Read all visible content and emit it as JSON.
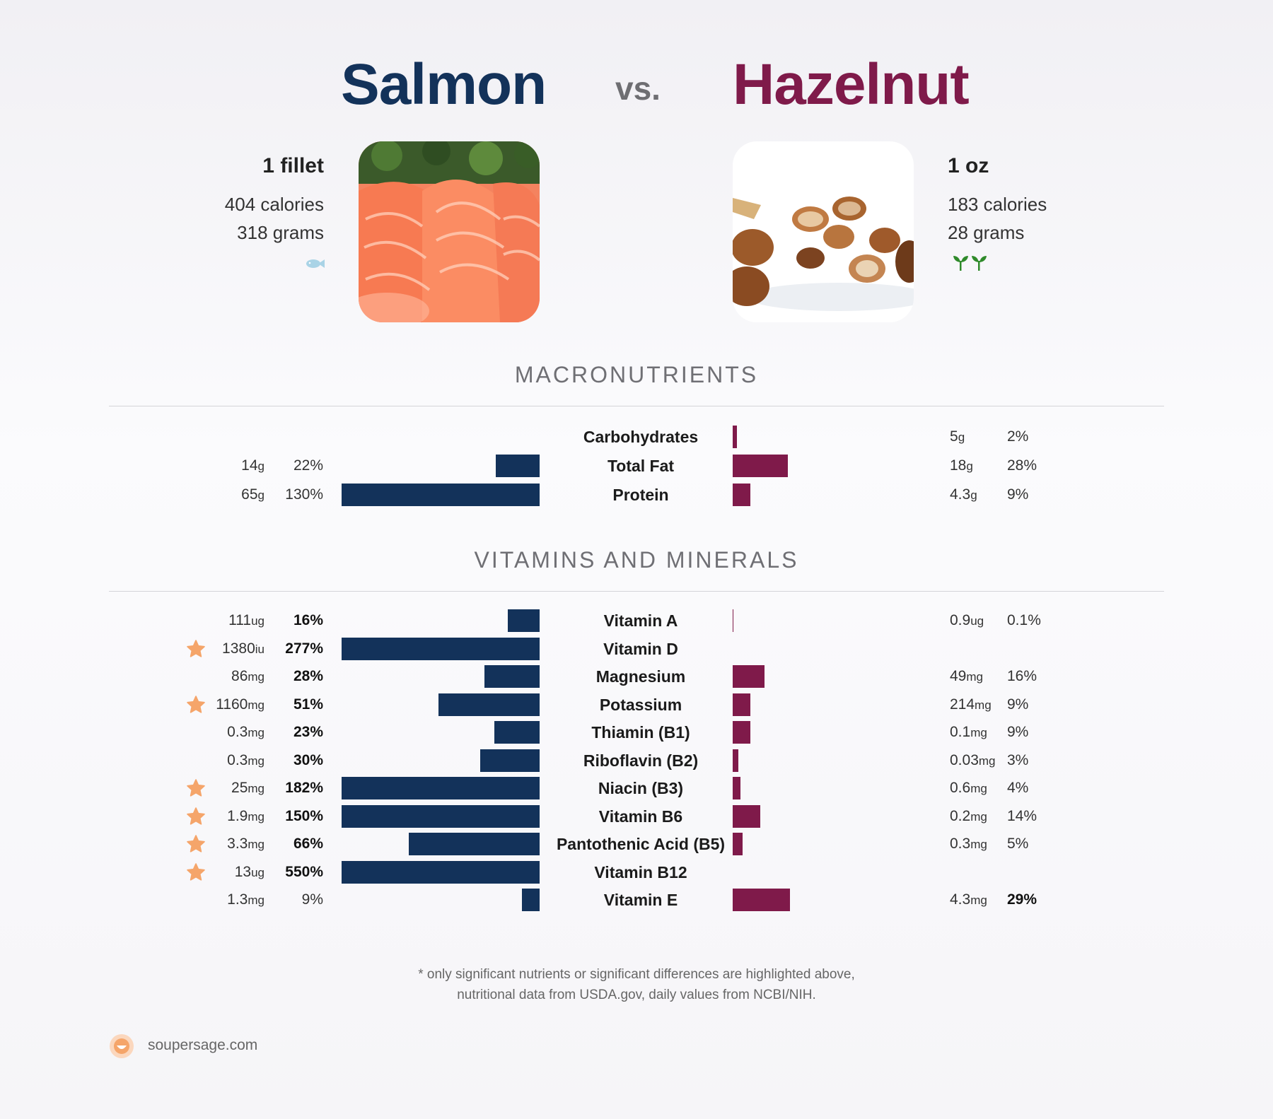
{
  "header": {
    "left_title": "Salmon",
    "vs": "vs.",
    "right_title": "Hazelnut"
  },
  "left_food": {
    "serving": "1 fillet",
    "calories": "404 calories",
    "grams": "318 grams",
    "icon": "fish-icon",
    "color": "#13325a"
  },
  "right_food": {
    "serving": "1 oz",
    "calories": "183 calories",
    "grams": "28 grams",
    "icon": "sprout-icon",
    "color": "#7f1a4a"
  },
  "sections": {
    "macros_title": "MACRONUTRIENTS",
    "vitamins_title": "VITAMINS AND MINERALS"
  },
  "chart_data": [
    {
      "type": "bar",
      "title": "MACRONUTRIENTS",
      "categories": [
        "Carbohydrates",
        "Total Fat",
        "Protein"
      ],
      "series": [
        {
          "name": "Salmon",
          "amounts": [
            "",
            "14",
            "65"
          ],
          "units": [
            "",
            "g",
            "g"
          ],
          "percent_labels": [
            "",
            "22%",
            "130%"
          ],
          "values": [
            null,
            22,
            130
          ],
          "highlight": [
            false,
            false,
            false
          ],
          "star": [
            false,
            false,
            false
          ]
        },
        {
          "name": "Hazelnut",
          "amounts": [
            "5",
            "18",
            "4.3"
          ],
          "units": [
            "g",
            "g",
            "g"
          ],
          "percent_labels": [
            "2%",
            "28%",
            "9%"
          ],
          "values": [
            2,
            28,
            9
          ],
          "highlight": [
            false,
            false,
            false
          ],
          "star": [
            false,
            false,
            false
          ]
        }
      ]
    },
    {
      "type": "bar",
      "title": "VITAMINS AND MINERALS",
      "categories": [
        "Vitamin A",
        "Vitamin D",
        "Magnesium",
        "Potassium",
        "Thiamin (B1)",
        "Riboflavin (B2)",
        "Niacin (B3)",
        "Vitamin B6",
        "Pantothenic Acid (B5)",
        "Vitamin B12",
        "Vitamin E"
      ],
      "series": [
        {
          "name": "Salmon",
          "amounts": [
            "111",
            "1380",
            "86",
            "1160",
            "0.3",
            "0.3",
            "25",
            "1.9",
            "3.3",
            "13",
            "1.3"
          ],
          "units": [
            "ug",
            "iu",
            "mg",
            "mg",
            "mg",
            "mg",
            "mg",
            "mg",
            "mg",
            "ug",
            "mg"
          ],
          "percent_labels": [
            "16%",
            "277%",
            "28%",
            "51%",
            "23%",
            "30%",
            "182%",
            "150%",
            "66%",
            "550%",
            "9%"
          ],
          "values": [
            16,
            277,
            28,
            51,
            23,
            30,
            182,
            150,
            66,
            550,
            9
          ],
          "highlight": [
            true,
            true,
            true,
            true,
            true,
            true,
            true,
            true,
            true,
            true,
            false
          ],
          "star": [
            false,
            true,
            false,
            true,
            false,
            false,
            true,
            true,
            true,
            true,
            false
          ]
        },
        {
          "name": "Hazelnut",
          "amounts": [
            "0.9",
            "",
            "49",
            "214",
            "0.1",
            "0.03",
            "0.6",
            "0.2",
            "0.3",
            "",
            "4.3"
          ],
          "units": [
            "ug",
            "",
            "mg",
            "mg",
            "mg",
            "mg",
            "mg",
            "mg",
            "mg",
            "",
            "mg"
          ],
          "percent_labels": [
            "0.1%",
            "",
            "16%",
            "9%",
            "9%",
            "3%",
            "4%",
            "14%",
            "5%",
            "",
            "29%"
          ],
          "values": [
            0.1,
            null,
            16,
            9,
            9,
            3,
            4,
            14,
            5,
            null,
            29
          ],
          "highlight": [
            false,
            false,
            false,
            false,
            false,
            false,
            false,
            false,
            false,
            false,
            true
          ],
          "star": [
            false,
            false,
            false,
            false,
            false,
            false,
            false,
            false,
            false,
            false,
            false
          ]
        }
      ]
    }
  ],
  "footer": {
    "note_line1": "* only significant nutrients or significant differences are highlighted above,",
    "note_line2": "nutritional data from USDA.gov, daily values from NCBI/NIH.",
    "brand": "soupersage.com"
  },
  "colors": {
    "salmon": "#13325a",
    "hazelnut": "#7f1a4a",
    "star": "#f5a56a"
  }
}
